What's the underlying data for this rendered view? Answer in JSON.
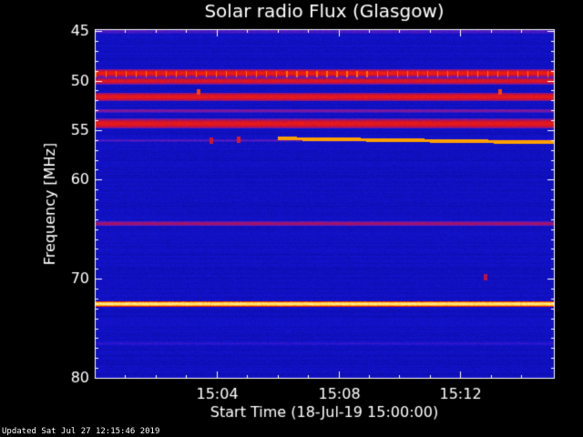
{
  "chart_data": {
    "type": "heatmap",
    "title": "Solar radio Flux (Glasgow)",
    "xlabel": "Start Time (18-Jul-19 15:00:00)",
    "ylabel": "Frequency [MHz]",
    "ylim": [
      44.8,
      80.1
    ],
    "y_ticks": [
      45,
      50,
      55,
      60,
      70,
      80
    ],
    "y_tick_labels": [
      "45",
      "50",
      "55",
      "60",
      "70",
      "80"
    ],
    "xlim_minutes": [
      0,
      15.1
    ],
    "x_ticks_minutes": [
      4,
      8,
      12
    ],
    "x_tick_labels": [
      "15:04",
      "15:08",
      "15:12"
    ],
    "colormap": [
      "#0a0aa0",
      "#1414d2",
      "#6a1ab4",
      "#c01040",
      "#ff2000",
      "#ffc000",
      "#ffffe0"
    ],
    "bands": [
      {
        "freq": 45.0,
        "width": 0.5,
        "intensity": 0.28
      },
      {
        "freq": 49.2,
        "width": 0.8,
        "intensity": 0.62
      },
      {
        "freq": 50.0,
        "width": 0.7,
        "intensity": 0.58
      },
      {
        "freq": 51.6,
        "width": 0.9,
        "intensity": 0.6
      },
      {
        "freq": 53.0,
        "width": 0.4,
        "intensity": 0.38
      },
      {
        "freq": 54.3,
        "width": 1.0,
        "intensity": 0.6
      },
      {
        "freq": 56.0,
        "width": 0.3,
        "intensity": 0.3
      },
      {
        "freq": 64.4,
        "width": 0.5,
        "intensity": 0.45
      },
      {
        "freq": 72.5,
        "width": 0.6,
        "intensity": 0.95
      },
      {
        "freq": 76.5,
        "width": 0.4,
        "intensity": 0.22
      }
    ],
    "events": [
      {
        "type": "drift_line",
        "t_start": 6.0,
        "t_end": 15.1,
        "f_start": 55.8,
        "f_end": 56.2,
        "intensity": 0.8
      },
      {
        "type": "periodic_pulses",
        "freq": 49.3,
        "period_minutes": 0.33,
        "intensity": 0.75
      },
      {
        "type": "spot",
        "t": 3.4,
        "freq": 51.1,
        "intensity": 0.7
      },
      {
        "type": "spot",
        "t": 13.3,
        "freq": 51.1,
        "intensity": 0.7
      },
      {
        "type": "spot",
        "t": 3.8,
        "freq": 56.0,
        "intensity": 0.55
      },
      {
        "type": "spot",
        "t": 4.7,
        "freq": 55.9,
        "intensity": 0.6
      },
      {
        "type": "spot",
        "t": 12.8,
        "freq": 69.8,
        "intensity": 0.5
      }
    ]
  },
  "footer": "Updated Sat Jul 27 12:15:46 2019"
}
